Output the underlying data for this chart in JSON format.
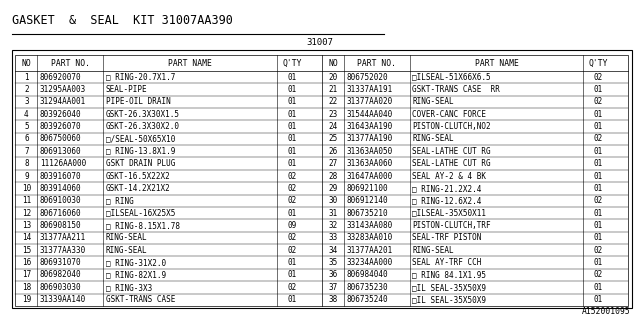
{
  "title": "GASKET  &  SEAL  KIT 31007AA390",
  "subtitle": "31007",
  "footer": "A152001095",
  "headers_left": [
    "NO",
    "PART NO.",
    "PART NAME",
    "Q'TY"
  ],
  "headers_right": [
    "NO",
    "PART NO.",
    "PART NAME",
    "Q'TY"
  ],
  "rows_left": [
    [
      "1",
      "806920070",
      "□ RING-20.7X1.7",
      "01"
    ],
    [
      "2",
      "31295AA003",
      "SEAL-PIPE",
      "01"
    ],
    [
      "3",
      "31294AA001",
      "PIPE-OIL DRAIN",
      "01"
    ],
    [
      "4",
      "803926040",
      "GSKT-26.3X30X1.5",
      "01"
    ],
    [
      "5",
      "803926070",
      "GSKT-26.3X30X2.0",
      "01"
    ],
    [
      "6",
      "806750060",
      "□/SEAL-50X65X10",
      "01"
    ],
    [
      "7",
      "806913060",
      "□ RING-13.8X1.9",
      "01"
    ],
    [
      "8",
      "11126AA000",
      "GSKT DRAIN PLUG",
      "01"
    ],
    [
      "9",
      "803916070",
      "GSKT-16.5X22X2",
      "02"
    ],
    [
      "10",
      "803914060",
      "GSKT-14.2X21X2",
      "02"
    ],
    [
      "11",
      "806910030",
      "□ RING",
      "02"
    ],
    [
      "12",
      "806716060",
      "□ILSEAL-16X25X5",
      "01"
    ],
    [
      "13",
      "806908150",
      "□ RING-8.15X1.78",
      "09"
    ],
    [
      "14",
      "31377AA211",
      "RING-SEAL",
      "02"
    ],
    [
      "15",
      "31377AA330",
      "RING-SEAL",
      "02"
    ],
    [
      "16",
      "806931070",
      "□ RING-31X2.0",
      "01"
    ],
    [
      "17",
      "806982040",
      "□ RING-82X1.9",
      "01"
    ],
    [
      "18",
      "806903030",
      "□ RING-3X3",
      "02"
    ],
    [
      "19",
      "31339AA140",
      "GSKT-TRANS CASE",
      "01"
    ]
  ],
  "rows_right": [
    [
      "20",
      "806752020",
      "□ILSEAL-51X66X6.5",
      "02"
    ],
    [
      "21",
      "31337AA191",
      "GSKT-TRANS CASE  RR",
      "01"
    ],
    [
      "22",
      "31377AA020",
      "RING-SEAL",
      "02"
    ],
    [
      "23",
      "31544AA040",
      "COVER-CANC FORCE",
      "01"
    ],
    [
      "24",
      "31643AA190",
      "PISTON-CLUTCH,NO2",
      "01"
    ],
    [
      "25",
      "31377AA190",
      "RING-SEAL",
      "02"
    ],
    [
      "26",
      "31363AA050",
      "SEAL-LATHE CUT RG",
      "01"
    ],
    [
      "27",
      "31363AA060",
      "SEAL-LATHE CUT RG",
      "01"
    ],
    [
      "28",
      "31647AA000",
      "SEAL AY-2 & 4 BK",
      "01"
    ],
    [
      "29",
      "806921100",
      "□ RING-21.2X2.4",
      "01"
    ],
    [
      "30",
      "806912140",
      "□ RING-12.6X2.4",
      "02"
    ],
    [
      "31",
      "806735210",
      "□ILSEAL-35X50X11",
      "01"
    ],
    [
      "32",
      "33143AA080",
      "PISTON-CLUTCH,TRF",
      "01"
    ],
    [
      "33",
      "33283AA010",
      "SEAL-TRF PISTON",
      "01"
    ],
    [
      "34",
      "31377AA201",
      "RING-SEAL",
      "02"
    ],
    [
      "35",
      "33234AA000",
      "SEAL AY-TRF CCH",
      "01"
    ],
    [
      "36",
      "806984040",
      "□ RING 84.1X1.95",
      "02"
    ],
    [
      "37",
      "806735230",
      "□IL SEAL-35X50X9",
      "01"
    ],
    [
      "38",
      "806735240",
      "□IL SEAL-35X50X9",
      "01"
    ]
  ],
  "bg_color": "#ffffff",
  "text_color": "#000000",
  "font_size": 5.5,
  "header_font_size": 5.8,
  "title_fontsize": 8.5
}
